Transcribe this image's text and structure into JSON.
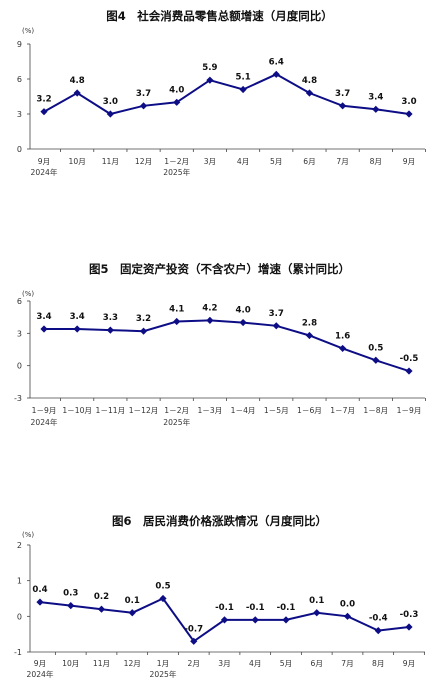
{
  "chart_data": [
    {
      "type": "line",
      "title": "图4　社会消费品零售总额增速（月度同比）",
      "unit": "(%)",
      "ylim": [
        0,
        9
      ],
      "yticks": [
        "9",
        "6",
        "3",
        "0"
      ],
      "categories": [
        "9月",
        "10月",
        "11月",
        "12月",
        "1－2月",
        "3月",
        "4月",
        "5月",
        "6月",
        "7月",
        "8月",
        "9月"
      ],
      "year_labels": [
        {
          "index": 0,
          "text": "2024年"
        },
        {
          "index": 4,
          "text": "2025年"
        }
      ],
      "values": [
        3.2,
        4.8,
        3.0,
        3.7,
        4.0,
        5.9,
        5.1,
        6.4,
        4.8,
        3.7,
        3.4,
        3.0
      ],
      "labels": [
        "3.2",
        "4.8",
        "3.0",
        "3.7",
        "4.0",
        "5.9",
        "5.1",
        "6.4",
        "4.8",
        "3.7",
        "3.4",
        "3.0"
      ]
    },
    {
      "type": "line",
      "title": "图5　固定资产投资（不含农户）增速（累计同比）",
      "unit": "(%)",
      "ylim": [
        -3,
        6
      ],
      "yticks": [
        "6",
        "3",
        "0",
        "-3"
      ],
      "categories": [
        "1－9月",
        "1－10月",
        "1－11月",
        "1－12月",
        "1－2月",
        "1－3月",
        "1－4月",
        "1－5月",
        "1－6月",
        "1－7月",
        "1－8月",
        "1－9月"
      ],
      "year_labels": [
        {
          "index": 0,
          "text": "2024年"
        },
        {
          "index": 4,
          "text": "2025年"
        }
      ],
      "values": [
        3.4,
        3.4,
        3.3,
        3.2,
        4.1,
        4.2,
        4.0,
        3.7,
        2.8,
        1.6,
        0.5,
        -0.5
      ],
      "labels": [
        "3.4",
        "3.4",
        "3.3",
        "3.2",
        "4.1",
        "4.2",
        "4.0",
        "3.7",
        "2.8",
        "1.6",
        "0.5",
        "-0.5"
      ]
    },
    {
      "type": "line",
      "title": "图6　居民消费价格涨跌情况（月度同比）",
      "unit": "(%)",
      "ylim": [
        -1,
        2
      ],
      "yticks": [
        "2",
        "1",
        "0",
        "-1"
      ],
      "categories": [
        "9月",
        "10月",
        "11月",
        "12月",
        "1月",
        "2月",
        "3月",
        "4月",
        "5月",
        "6月",
        "7月",
        "8月",
        "9月"
      ],
      "year_labels": [
        {
          "index": 0,
          "text": "2024年"
        },
        {
          "index": 4,
          "text": "2025年"
        }
      ],
      "values": [
        0.4,
        0.3,
        0.2,
        0.1,
        0.5,
        -0.7,
        -0.1,
        -0.1,
        -0.1,
        0.1,
        0.0,
        -0.4,
        -0.3
      ],
      "labels": [
        "0.4",
        "0.3",
        "0.2",
        "0.1",
        "0.5",
        "-0.7",
        "-0.1",
        "-0.1",
        "-0.1",
        "0.1",
        "0.0",
        "-0.4",
        "-0.3"
      ]
    }
  ]
}
